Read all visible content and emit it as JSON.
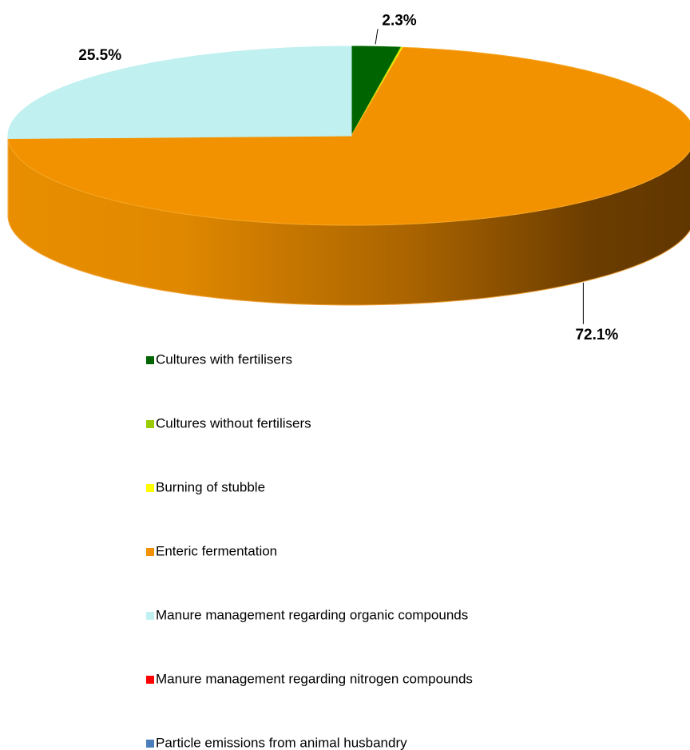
{
  "chart_data": {
    "type": "pie",
    "categories": [
      "Cultures with fertilisers",
      "Cultures without fertilisers",
      "Burning of stubble",
      "Enteric fermentation",
      "Manure management regarding organic compounds",
      "Manure management regarding nitrogen compounds",
      "Particle emissions from animal husbandry"
    ],
    "values": [
      2.3,
      0.05,
      0.05,
      72.1,
      25.5,
      0,
      0
    ],
    "value_labels": [
      "2.3%",
      null,
      null,
      "72.1%",
      "25.5%",
      null,
      null
    ],
    "colors": [
      "#006400",
      "#99cc00",
      "#ffff00",
      "#f39200",
      "#c0f0f0",
      "#ff0000",
      "#4a7ebb"
    ]
  }
}
